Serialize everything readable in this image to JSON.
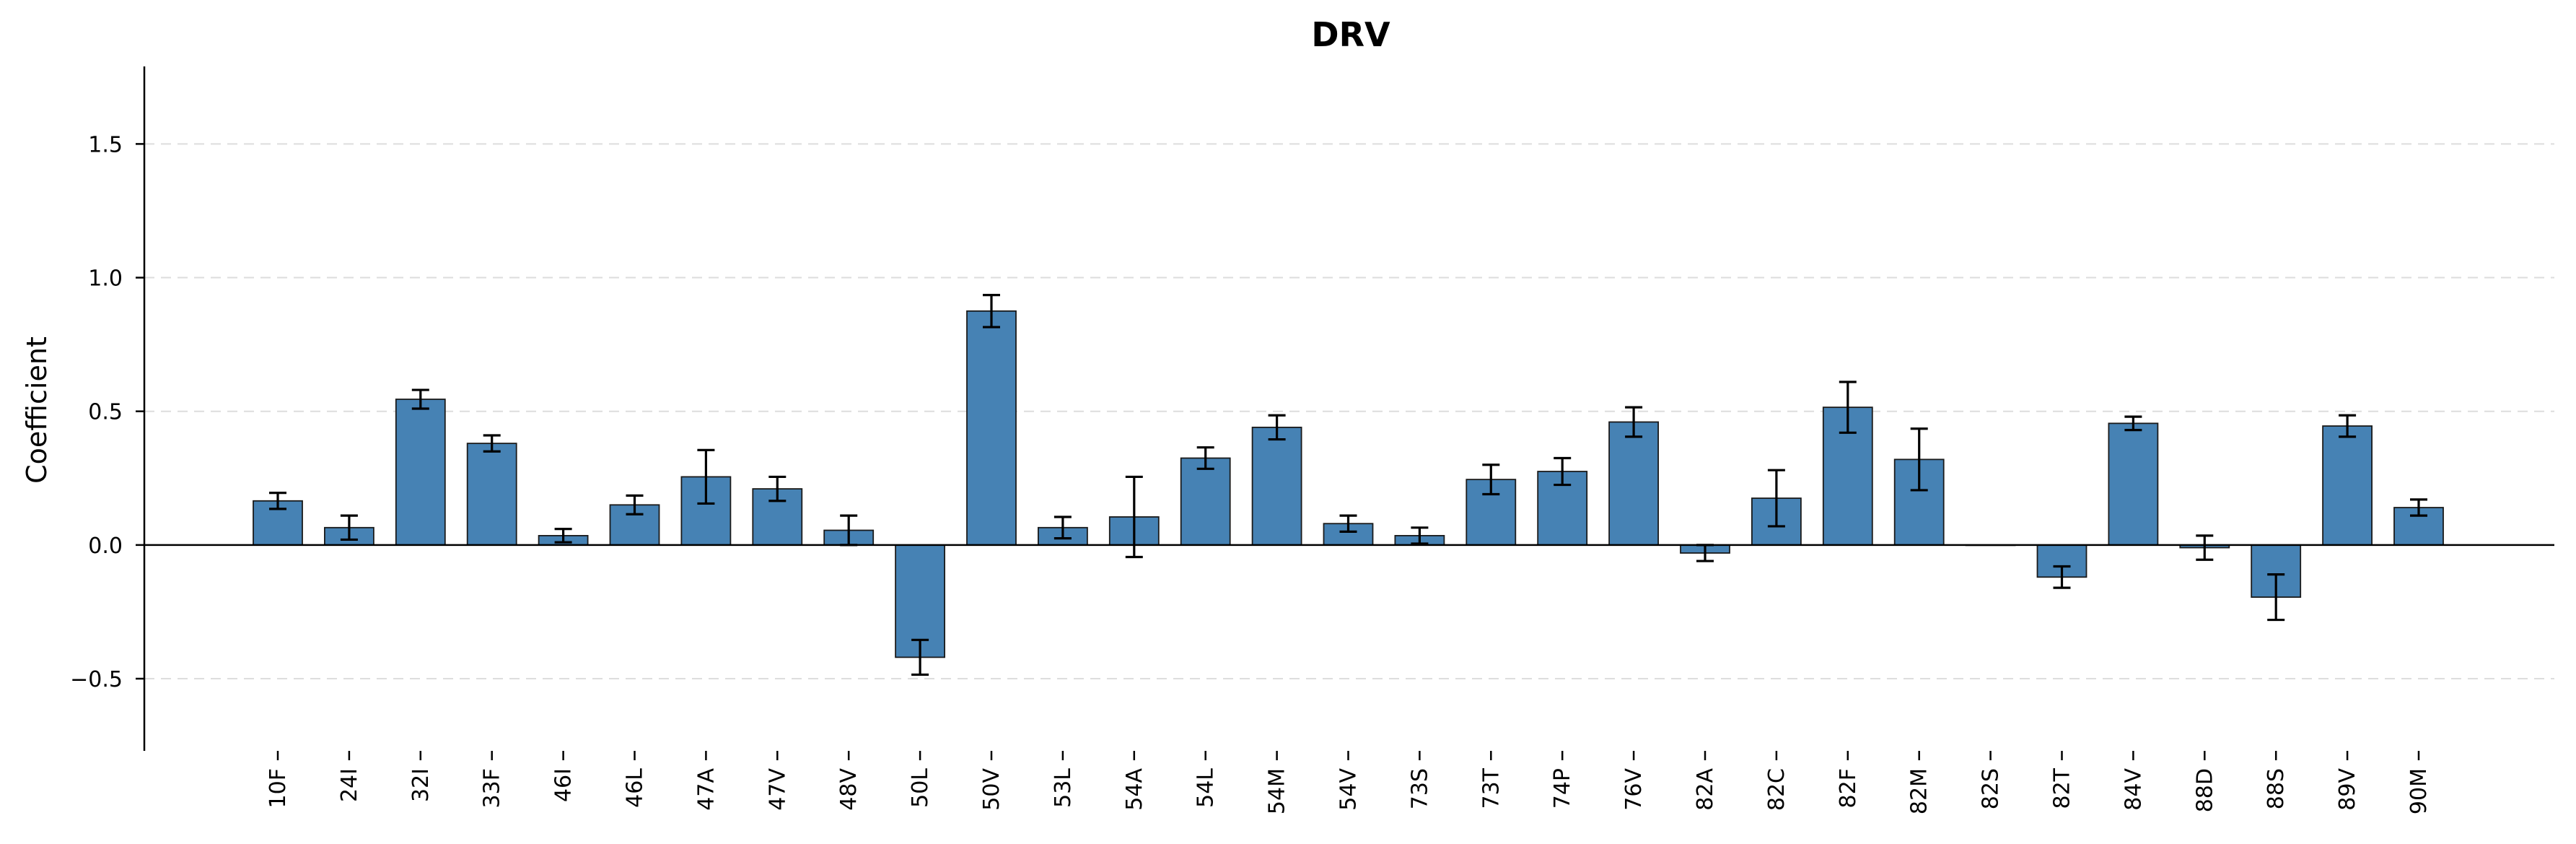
{
  "chart_data": {
    "type": "bar",
    "title": "DRV",
    "xlabel": "",
    "ylabel": "Coefficient",
    "ylim": [
      -0.77,
      1.79
    ],
    "yticks": [
      -0.5,
      0.0,
      0.5,
      1.0,
      1.5
    ],
    "ytick_labels": [
      "−0.5",
      "0.0",
      "0.5",
      "1.0",
      "1.5"
    ],
    "grid": "horizontal dashed",
    "bar_color": "#4682b4",
    "categories": [
      "10F",
      "24I",
      "32I",
      "33F",
      "46I",
      "46L",
      "47A",
      "47V",
      "48V",
      "50L",
      "50V",
      "53L",
      "54A",
      "54L",
      "54M",
      "54V",
      "73S",
      "73T",
      "74P",
      "76V",
      "82A",
      "82C",
      "82F",
      "82M",
      "82S",
      "82T",
      "84V",
      "88D",
      "88S",
      "89V",
      "90M"
    ],
    "values": [
      0.165,
      0.065,
      0.545,
      0.38,
      0.035,
      0.15,
      0.255,
      0.21,
      0.055,
      -0.42,
      0.875,
      0.065,
      0.105,
      0.325,
      0.44,
      0.08,
      0.035,
      0.245,
      0.275,
      0.46,
      -0.03,
      0.175,
      0.515,
      0.32,
      0.0,
      -0.12,
      0.455,
      -0.01,
      -0.195,
      0.445,
      0.14
    ],
    "errors": [
      0.03,
      0.045,
      0.035,
      0.03,
      0.025,
      0.035,
      0.1,
      0.045,
      0.055,
      0.065,
      0.06,
      0.04,
      0.15,
      0.04,
      0.045,
      0.03,
      0.03,
      0.055,
      0.05,
      0.055,
      0.03,
      0.105,
      0.095,
      0.115,
      0.0,
      0.04,
      0.025,
      0.045,
      0.085,
      0.04,
      0.03
    ]
  }
}
